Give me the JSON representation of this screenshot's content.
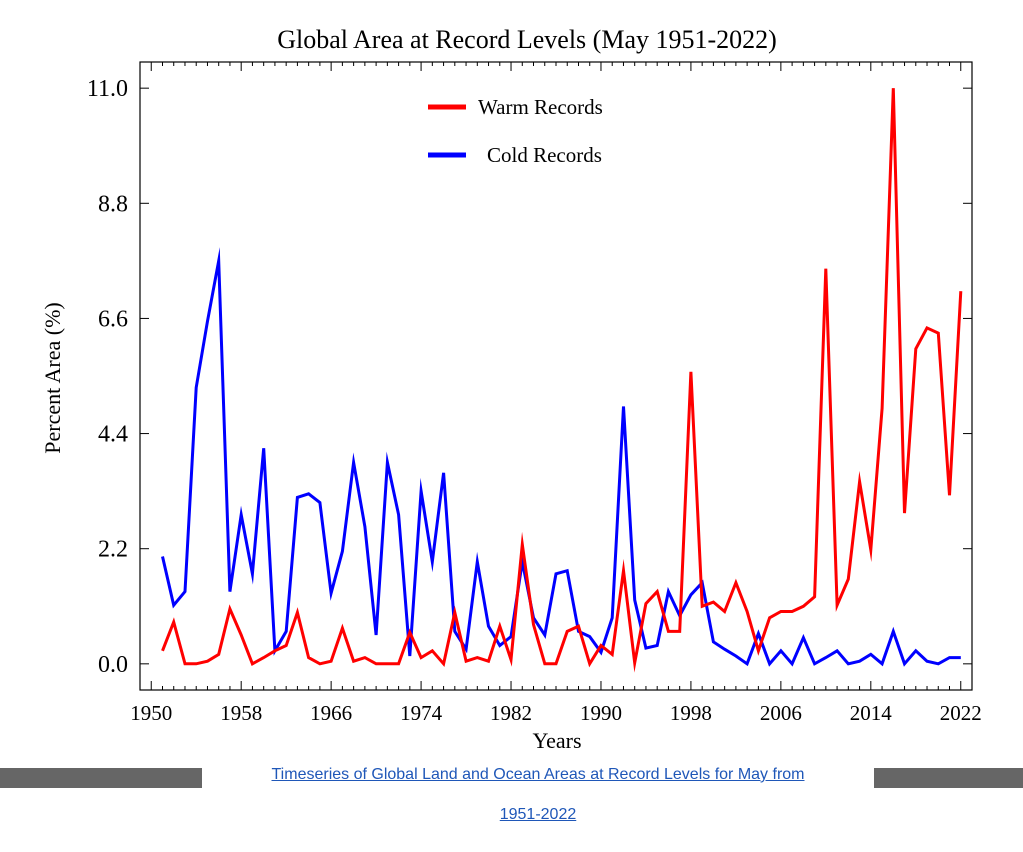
{
  "chart_data": {
    "type": "line",
    "title": "Global Area at Record Levels (May 1951-2022)",
    "xlabel": "Years",
    "ylabel": "Percent Area (%)",
    "xlim": [
      1949,
      2023
    ],
    "ylim": [
      -0.5,
      11.5
    ],
    "xticks": [
      1950,
      1958,
      1966,
      1974,
      1982,
      1990,
      1998,
      2006,
      2014,
      2022
    ],
    "yticks": [
      0.0,
      2.2,
      4.4,
      6.6,
      8.8,
      11.0
    ],
    "ytick_labels": [
      "0.0",
      "2.2",
      "4.4",
      "6.6",
      "8.8",
      "11.0"
    ],
    "legend_position": "top-center",
    "x": [
      1951,
      1952,
      1953,
      1954,
      1955,
      1956,
      1957,
      1958,
      1959,
      1960,
      1961,
      1962,
      1963,
      1964,
      1965,
      1966,
      1967,
      1968,
      1969,
      1970,
      1971,
      1972,
      1973,
      1974,
      1975,
      1976,
      1977,
      1978,
      1979,
      1980,
      1981,
      1982,
      1983,
      1984,
      1985,
      1986,
      1987,
      1988,
      1989,
      1990,
      1991,
      1992,
      1993,
      1994,
      1995,
      1996,
      1997,
      1998,
      1999,
      2000,
      2001,
      2002,
      2003,
      2004,
      2005,
      2006,
      2007,
      2008,
      2009,
      2010,
      2011,
      2012,
      2013,
      2014,
      2015,
      2016,
      2017,
      2018,
      2019,
      2020,
      2021,
      2022
    ],
    "series": [
      {
        "name": "Warm Records",
        "color": "#ff0000",
        "values": [
          0.25,
          0.8,
          0.0,
          0.0,
          0.05,
          0.18,
          1.05,
          0.55,
          0.0,
          0.12,
          0.25,
          0.35,
          0.98,
          0.12,
          0.0,
          0.05,
          0.68,
          0.05,
          0.12,
          0.0,
          0.0,
          0.0,
          0.6,
          0.12,
          0.25,
          0.0,
          0.98,
          0.05,
          0.12,
          0.05,
          0.72,
          0.08,
          2.28,
          0.75,
          0.0,
          0.0,
          0.62,
          0.72,
          0.0,
          0.35,
          0.18,
          1.78,
          0.02,
          1.15,
          1.38,
          0.62,
          0.62,
          5.58,
          1.1,
          1.18,
          1.0,
          1.55,
          1.0,
          0.25,
          0.88,
          1.0,
          1.0,
          1.1,
          1.28,
          7.55,
          1.12,
          1.62,
          3.48,
          2.18,
          4.88,
          11.0,
          2.88,
          6.02,
          6.42,
          6.32,
          3.22,
          7.12
        ]
      },
      {
        "name": "Cold Records",
        "color": "#0000ff",
        "values": [
          2.05,
          1.12,
          1.38,
          5.28,
          6.55,
          7.7,
          1.38,
          2.85,
          1.72,
          4.12,
          0.25,
          0.62,
          3.18,
          3.25,
          3.08,
          1.35,
          2.15,
          3.85,
          2.62,
          0.55,
          3.85,
          2.85,
          0.15,
          3.3,
          1.95,
          3.65,
          0.62,
          0.28,
          1.95,
          0.72,
          0.35,
          0.52,
          1.95,
          0.88,
          0.55,
          1.72,
          1.78,
          0.62,
          0.52,
          0.22,
          0.88,
          4.92,
          1.22,
          0.3,
          0.35,
          1.38,
          0.92,
          1.32,
          1.55,
          0.42,
          0.28,
          0.15,
          0.0,
          0.58,
          0.0,
          0.25,
          0.0,
          0.5,
          0.0,
          0.12,
          0.25,
          0.0,
          0.05,
          0.18,
          0.0,
          0.62,
          0.0,
          0.25,
          0.05,
          0.0,
          0.12,
          0.12
        ]
      }
    ]
  },
  "caption": {
    "line1": "Timeseries of Global Land and Ocean Areas at Record Levels for May from",
    "line2": "1951-2022"
  }
}
